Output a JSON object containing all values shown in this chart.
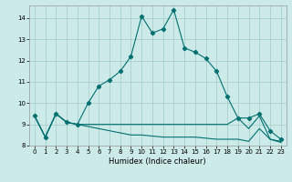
{
  "title": "",
  "xlabel": "Humidex (Indice chaleur)",
  "bg_color": "#cceae8",
  "grid_color": "#aacfcd",
  "line_color": "#007070",
  "xlim": [
    -0.5,
    23.5
  ],
  "ylim": [
    8.0,
    14.6
  ],
  "yticks": [
    8,
    9,
    10,
    11,
    12,
    13,
    14
  ],
  "xticks": [
    0,
    1,
    2,
    3,
    4,
    5,
    6,
    7,
    8,
    9,
    10,
    11,
    12,
    13,
    14,
    15,
    16,
    17,
    18,
    19,
    20,
    21,
    22,
    23
  ],
  "line1_x": [
    0,
    1,
    2,
    3,
    4,
    5,
    6,
    7,
    8,
    9,
    10,
    11,
    12,
    13,
    14,
    15,
    16,
    17,
    18,
    19,
    20,
    21,
    22,
    23
  ],
  "line1_y": [
    9.4,
    8.4,
    9.5,
    9.1,
    9.0,
    10.0,
    10.8,
    11.1,
    11.5,
    12.2,
    14.1,
    13.3,
    13.5,
    14.4,
    12.6,
    12.4,
    12.1,
    11.5,
    10.3,
    9.3,
    9.3,
    9.5,
    8.7,
    8.3
  ],
  "line2_x": [
    0,
    1,
    2,
    3,
    4,
    5,
    6,
    7,
    8,
    9,
    10,
    11,
    12,
    13,
    14,
    15,
    16,
    17,
    18,
    19,
    20,
    21,
    22,
    23
  ],
  "line2_y": [
    9.4,
    8.4,
    9.5,
    9.1,
    9.0,
    9.0,
    9.0,
    9.0,
    9.0,
    9.0,
    9.0,
    9.0,
    9.0,
    9.0,
    9.0,
    9.0,
    9.0,
    9.0,
    9.0,
    9.3,
    8.8,
    9.4,
    8.3,
    8.2
  ],
  "line3_x": [
    0,
    1,
    2,
    3,
    4,
    5,
    6,
    7,
    8,
    9,
    10,
    11,
    12,
    13,
    14,
    15,
    16,
    17,
    18,
    19,
    20,
    21,
    22,
    23
  ],
  "line3_y": [
    9.4,
    8.4,
    9.5,
    9.1,
    9.0,
    8.9,
    8.8,
    8.7,
    8.6,
    8.5,
    8.5,
    8.45,
    8.4,
    8.4,
    8.4,
    8.4,
    8.35,
    8.3,
    8.3,
    8.3,
    8.2,
    8.8,
    8.3,
    8.15
  ],
  "xlabel_fontsize": 6.0,
  "tick_fontsize": 5.0,
  "linewidth": 0.8,
  "markersize": 2.2
}
